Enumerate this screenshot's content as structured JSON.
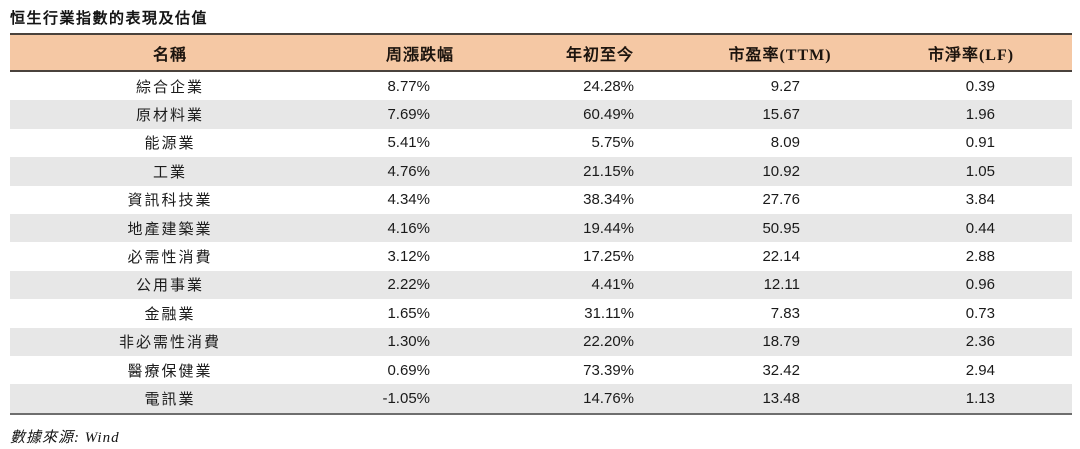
{
  "title": "恒生行業指數的表現及估值",
  "source": "數據來源: Wind",
  "colors": {
    "header_bg": "#F5C8A4",
    "stripe_bg": "#E7E7E7",
    "header_border": "#4a423c",
    "bottom_border": "#6e6e6e",
    "text": "#1a1a1a"
  },
  "chart_data": {
    "type": "table",
    "title": "恒生行業指數的表現及估值",
    "columns": [
      "名稱",
      "周漲跌幅",
      "年初至今",
      "市盈率(TTM)",
      "市淨率(LF)"
    ],
    "rows": [
      [
        "綜合企業",
        "8.77%",
        "24.28%",
        "9.27",
        "0.39"
      ],
      [
        "原材料業",
        "7.69%",
        "60.49%",
        "15.67",
        "1.96"
      ],
      [
        "能源業",
        "5.41%",
        "5.75%",
        "8.09",
        "0.91"
      ],
      [
        "工業",
        "4.76%",
        "21.15%",
        "10.92",
        "1.05"
      ],
      [
        "資訊科技業",
        "4.34%",
        "38.34%",
        "27.76",
        "3.84"
      ],
      [
        "地產建築業",
        "4.16%",
        "19.44%",
        "50.95",
        "0.44"
      ],
      [
        "必需性消費",
        "3.12%",
        "17.25%",
        "22.14",
        "2.88"
      ],
      [
        "公用事業",
        "2.22%",
        "4.41%",
        "12.11",
        "0.96"
      ],
      [
        "金融業",
        "1.65%",
        "31.11%",
        "7.83",
        "0.73"
      ],
      [
        "非必需性消費",
        "1.30%",
        "22.20%",
        "18.79",
        "2.36"
      ],
      [
        "醫療保健業",
        "0.69%",
        "73.39%",
        "32.42",
        "2.94"
      ],
      [
        "電訊業",
        "-1.05%",
        "14.76%",
        "13.48",
        "1.13"
      ]
    ],
    "source": "數據來源: Wind",
    "layout": {
      "zebra_striping": true,
      "numeric_alignment": "right",
      "header_alignment": "center"
    }
  }
}
